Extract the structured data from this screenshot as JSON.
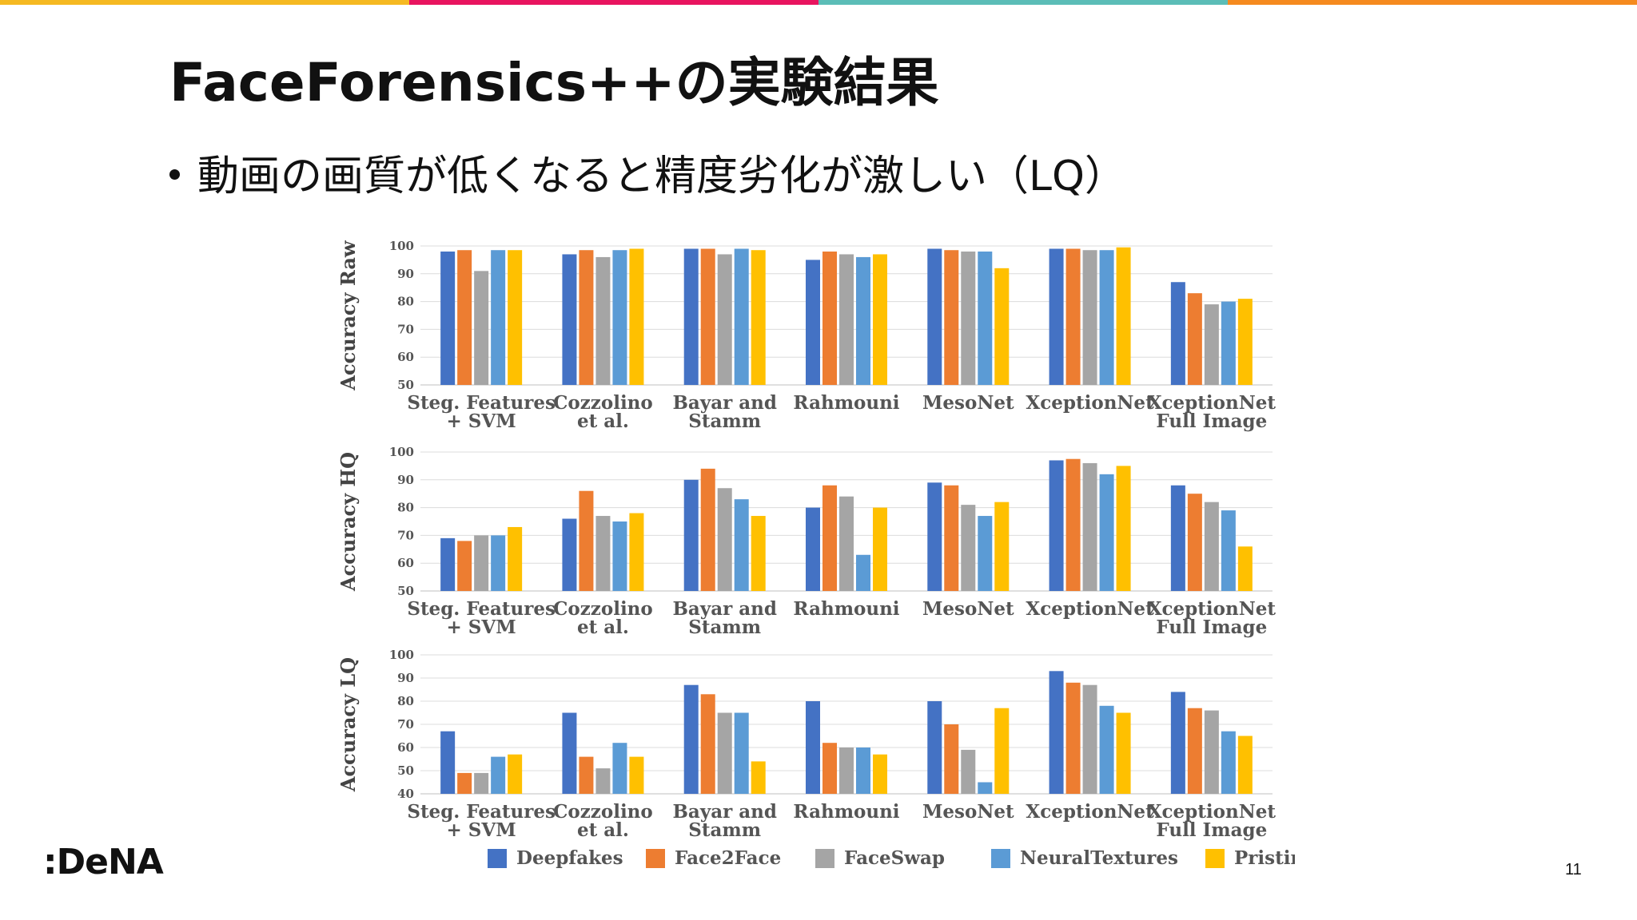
{
  "slide": {
    "title": "FaceForensics++の実験結果",
    "bullet": "動画の画質が低くなると精度劣化が激しい（LQ）",
    "logo": ":DeNA",
    "page_number": "11",
    "accent_colors": [
      "#f5b922",
      "#e8145f",
      "#5bbdb7",
      "#f58a1f"
    ]
  },
  "chart_data": [
    {
      "type": "bar",
      "ylabel": "Accuracy Raw",
      "ylim": [
        50,
        100
      ],
      "yticks": [
        "50",
        "60",
        "70",
        "80",
        "90",
        "100"
      ],
      "categories": [
        "Steg. Features\n+ SVM",
        "Cozzolino\net al.",
        "Bayar and\nStamm",
        "Rahmouni",
        "MesoNet",
        "XceptionNet",
        "XceptionNet\nFull Image"
      ],
      "series": [
        {
          "name": "Deepfakes",
          "color": "#4472c4",
          "values": [
            98,
            97,
            99,
            95,
            99,
            99,
            87
          ]
        },
        {
          "name": "Face2Face",
          "color": "#ed7d31",
          "values": [
            98.5,
            98.5,
            99,
            98,
            98.5,
            99,
            83
          ]
        },
        {
          "name": "FaceSwap",
          "color": "#a5a5a5",
          "values": [
            91,
            96,
            97,
            97,
            98,
            98.5,
            79
          ]
        },
        {
          "name": "NeuralTextures",
          "color": "#5b9bd5",
          "values": [
            98.5,
            98.5,
            99,
            96,
            98,
            98.5,
            80
          ]
        },
        {
          "name": "Pristine",
          "color": "#ffc000",
          "values": [
            98.5,
            99,
            98.5,
            97,
            92,
            99.5,
            81
          ]
        }
      ]
    },
    {
      "type": "bar",
      "ylabel": "Accuracy HQ",
      "ylim": [
        50,
        100
      ],
      "yticks": [
        "50",
        "60",
        "70",
        "80",
        "90",
        "100"
      ],
      "categories": [
        "Steg. Features\n+ SVM",
        "Cozzolino\net al.",
        "Bayar and\nStamm",
        "Rahmouni",
        "MesoNet",
        "XceptionNet",
        "XceptionNet\nFull Image"
      ],
      "series": [
        {
          "name": "Deepfakes",
          "color": "#4472c4",
          "values": [
            69,
            76,
            90,
            80,
            89,
            97,
            88
          ]
        },
        {
          "name": "Face2Face",
          "color": "#ed7d31",
          "values": [
            68,
            86,
            94,
            88,
            88,
            97.5,
            85
          ]
        },
        {
          "name": "FaceSwap",
          "color": "#a5a5a5",
          "values": [
            70,
            77,
            87,
            84,
            81,
            96,
            82
          ]
        },
        {
          "name": "NeuralTextures",
          "color": "#5b9bd5",
          "values": [
            70,
            75,
            83,
            63,
            77,
            92,
            79
          ]
        },
        {
          "name": "Pristine",
          "color": "#ffc000",
          "values": [
            73,
            78,
            77,
            80,
            82,
            95,
            66
          ]
        }
      ]
    },
    {
      "type": "bar",
      "ylabel": "Accuracy LQ",
      "ylim": [
        40,
        100
      ],
      "yticks": [
        "40",
        "50",
        "60",
        "70",
        "80",
        "90",
        "100"
      ],
      "categories": [
        "Steg. Features\n+ SVM",
        "Cozzolino\net al.",
        "Bayar and\nStamm",
        "Rahmouni",
        "MesoNet",
        "XceptionNet",
        "XceptionNet\nFull Image"
      ],
      "series": [
        {
          "name": "Deepfakes",
          "color": "#4472c4",
          "values": [
            67,
            75,
            87,
            80,
            80,
            93,
            84
          ]
        },
        {
          "name": "Face2Face",
          "color": "#ed7d31",
          "values": [
            49,
            56,
            83,
            62,
            70,
            88,
            77
          ]
        },
        {
          "name": "FaceSwap",
          "color": "#a5a5a5",
          "values": [
            49,
            51,
            75,
            60,
            59,
            87,
            76
          ]
        },
        {
          "name": "NeuralTextures",
          "color": "#5b9bd5",
          "values": [
            56,
            62,
            75,
            60,
            45,
            78,
            67
          ]
        },
        {
          "name": "Pristine",
          "color": "#ffc000",
          "values": [
            57,
            56,
            54,
            57,
            77,
            75,
            65
          ]
        }
      ]
    }
  ],
  "legend": {
    "placement": "bottom",
    "items": [
      {
        "name": "Deepfakes",
        "color": "#4472c4"
      },
      {
        "name": "Face2Face",
        "color": "#ed7d31"
      },
      {
        "name": "FaceSwap",
        "color": "#a5a5a5"
      },
      {
        "name": "NeuralTextures",
        "color": "#5b9bd5"
      },
      {
        "name": "Pristine",
        "color": "#ffc000"
      }
    ]
  }
}
